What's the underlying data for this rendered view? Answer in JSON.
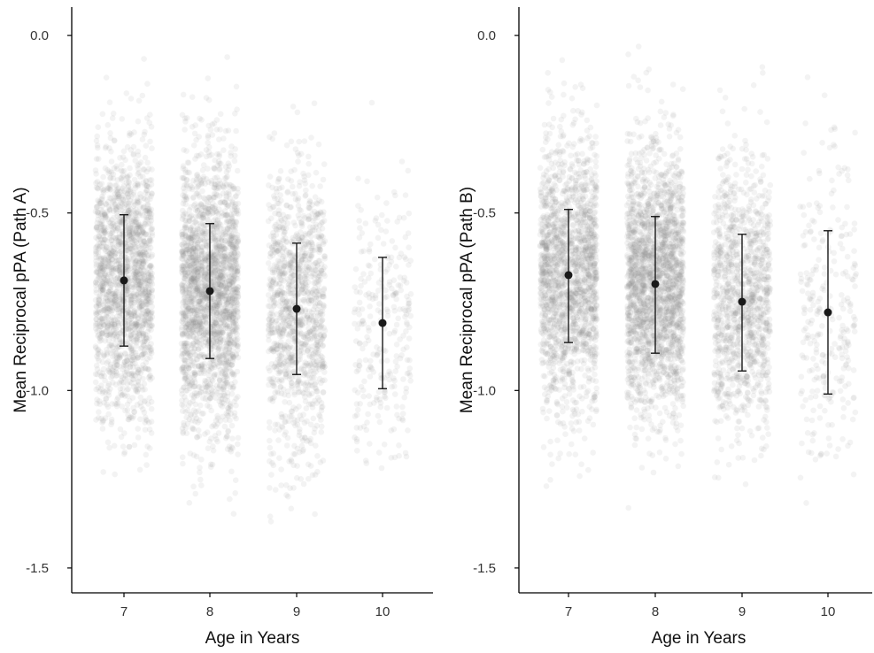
{
  "colors": {
    "axis": "#000000",
    "jitter_points": "#8c8c8c",
    "summary": "#1a1a1a"
  },
  "chart_data": [
    {
      "type": "scatter",
      "xlabel": "Age in Years",
      "ylabel": "Mean Reciprocal pPA (Path A)",
      "categories": [
        "7",
        "8",
        "9",
        "10"
      ],
      "ylim": [
        -1.57,
        0.08
      ],
      "yticks": [
        "0.0",
        "-0.5",
        "-1.0",
        "-1.5"
      ],
      "grid": false,
      "summary": {
        "means": [
          -0.69,
          -0.72,
          -0.77,
          -0.81
        ],
        "error_low": [
          -0.875,
          -0.91,
          -0.955,
          -0.995
        ],
        "error_high": [
          -0.505,
          -0.53,
          -0.585,
          -0.625
        ]
      },
      "jitter": {
        "sd": [
          0.19,
          0.19,
          0.19,
          0.19
        ],
        "range": [
          [
            -1.32,
            -0.03
          ],
          [
            -1.37,
            -0.02
          ],
          [
            -1.39,
            -0.03
          ],
          [
            -1.23,
            -0.17
          ]
        ],
        "n": [
          1800,
          2200,
          1200,
          280
        ],
        "opacity": 0.1
      }
    },
    {
      "type": "scatter",
      "xlabel": "Age in Years",
      "ylabel": "Mean Reciprocal pPA (Path B)",
      "categories": [
        "7",
        "8",
        "9",
        "10"
      ],
      "ylim": [
        -1.57,
        0.08
      ],
      "yticks": [
        "0.0",
        "-0.5",
        "-1.0",
        "-1.5"
      ],
      "grid": false,
      "summary": {
        "means": [
          -0.675,
          -0.7,
          -0.75,
          -0.78
        ],
        "error_low": [
          -0.865,
          -0.895,
          -0.945,
          -1.01
        ],
        "error_high": [
          -0.49,
          -0.51,
          -0.56,
          -0.55
        ]
      },
      "jitter": {
        "sd": [
          0.19,
          0.19,
          0.19,
          0.23
        ],
        "range": [
          [
            -1.38,
            -0.03
          ],
          [
            -1.4,
            -0.03
          ],
          [
            -1.44,
            -0.02
          ],
          [
            -1.36,
            -0.03
          ]
        ],
        "n": [
          1800,
          2200,
          1200,
          280
        ],
        "opacity": 0.1
      }
    }
  ]
}
